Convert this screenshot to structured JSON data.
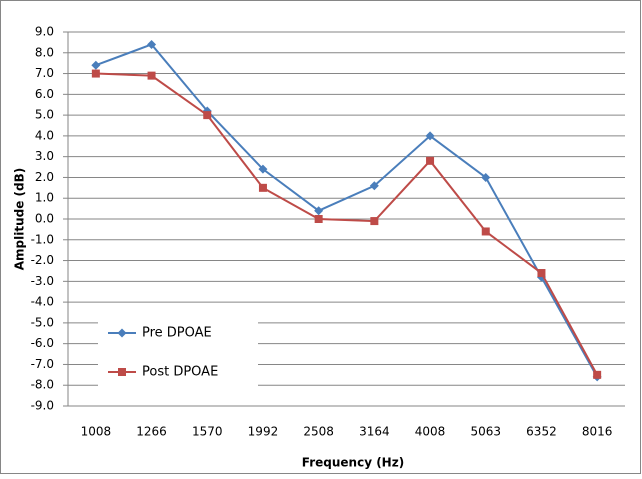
{
  "chart_data": {
    "type": "line",
    "x_label": "Frequency (Hz)",
    "y_label": "Amplitude (dB)",
    "categories": [
      "1008",
      "1266",
      "1570",
      "1992",
      "2508",
      "3164",
      "4008",
      "5063",
      "6352",
      "8016"
    ],
    "series": [
      {
        "name": "Pre DPOAE",
        "color": "#4a7ebb",
        "marker": "diamond",
        "values": [
          7.4,
          8.4,
          5.2,
          2.4,
          0.4,
          1.6,
          4.0,
          2.0,
          -2.8,
          -7.6
        ]
      },
      {
        "name": "Post DPOAE",
        "color": "#be4b48",
        "marker": "square",
        "values": [
          7.0,
          6.9,
          5.0,
          1.5,
          0.0,
          -0.1,
          2.8,
          -0.6,
          -2.6,
          -7.5
        ]
      }
    ],
    "ylim": [
      -9,
      9
    ],
    "yticks": [
      {
        "value": -9,
        "label": "-9.0"
      },
      {
        "value": -8,
        "label": "-8.0"
      },
      {
        "value": -7,
        "label": "-7.0"
      },
      {
        "value": -6,
        "label": "-6.0"
      },
      {
        "value": -5,
        "label": "-5.0"
      },
      {
        "value": -4,
        "label": "-4.0"
      },
      {
        "value": -3,
        "label": "-3.0"
      },
      {
        "value": -2,
        "label": "-2.0"
      },
      {
        "value": -1,
        "label": "-1.0"
      },
      {
        "value": 0,
        "label": "0.0"
      },
      {
        "value": 1,
        "label": "1.0"
      },
      {
        "value": 2,
        "label": "2.0"
      },
      {
        "value": 3,
        "label": "3.0"
      },
      {
        "value": 4,
        "label": "4.0"
      },
      {
        "value": 5,
        "label": "5.0"
      },
      {
        "value": 6,
        "label": "6.0"
      },
      {
        "value": 7,
        "label": "7.0"
      },
      {
        "value": 8,
        "label": "8.0"
      },
      {
        "value": 9,
        "label": "9.0"
      }
    ],
    "grid": true,
    "legend": "lower left"
  }
}
